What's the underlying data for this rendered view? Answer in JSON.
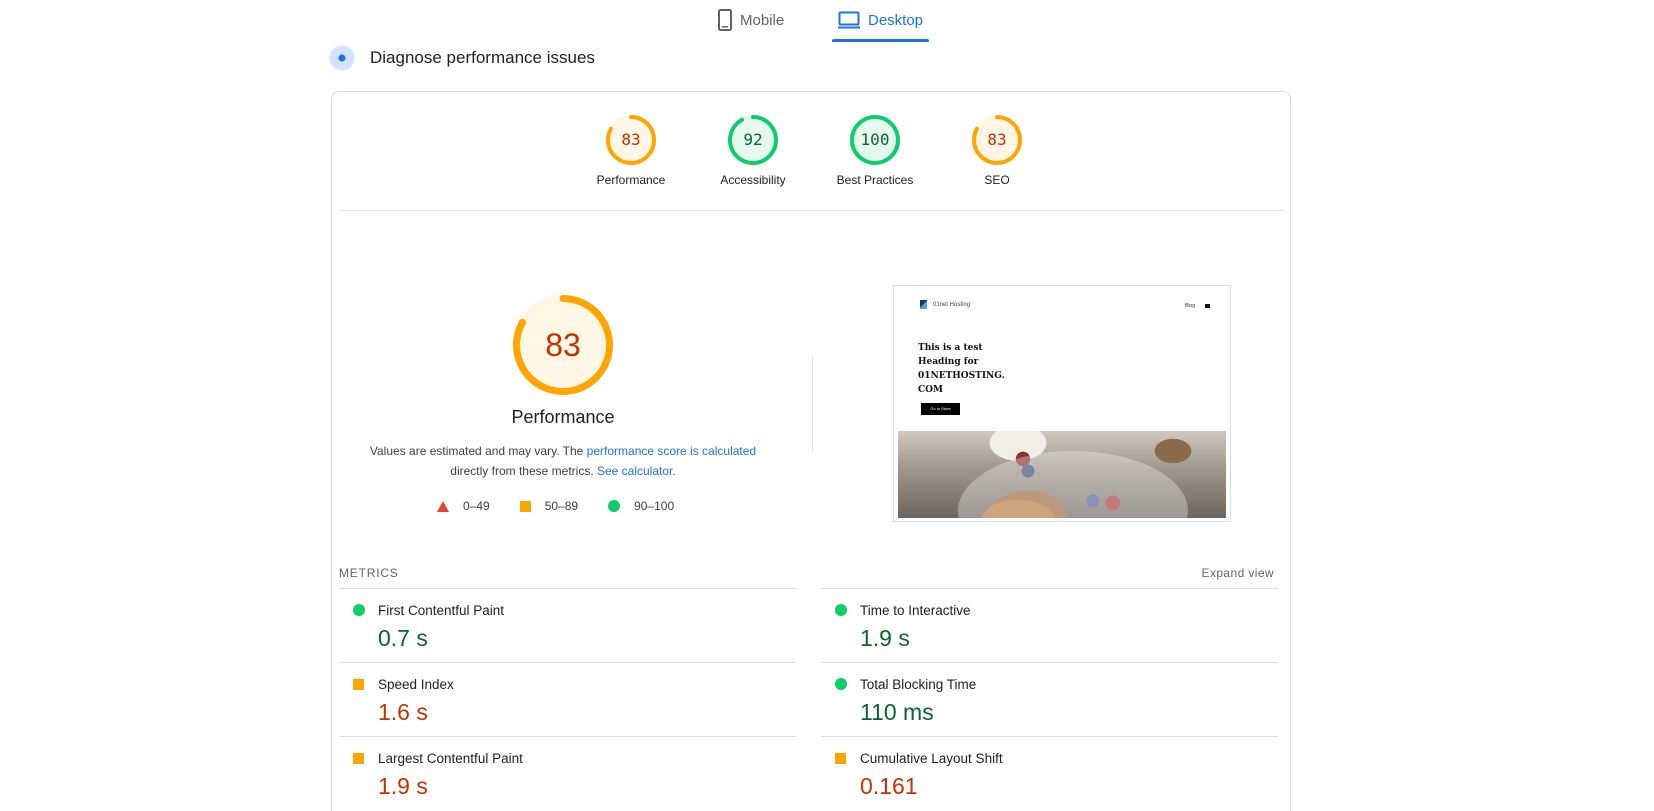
{
  "tabs": [
    {
      "label": "Mobile",
      "icon": "phone-icon",
      "active": false
    },
    {
      "label": "Desktop",
      "icon": "monitor-icon",
      "active": true
    }
  ],
  "diagnose": {
    "title": "Diagnose performance issues",
    "icon": "diagnose-icon"
  },
  "gauges": [
    {
      "score": "83",
      "label": "Performance",
      "value": 0.83,
      "status": "average"
    },
    {
      "score": "92",
      "label": "Accessibility",
      "value": 0.92,
      "status": "pass"
    },
    {
      "score": "100",
      "label": "Best Practices",
      "value": 1.0,
      "status": "pass"
    },
    {
      "score": "83",
      "label": "SEO",
      "value": 0.83,
      "status": "average"
    }
  ],
  "performance": {
    "score": "83",
    "value": 0.83,
    "title": "Performance",
    "note_prefix": "Values are estimated and may vary. The ",
    "note_link": "performance score is calculated",
    "note_middle": "directly from these metrics. ",
    "note_link2": "See calculator",
    "note_suffix": "."
  },
  "legend": [
    {
      "range": "0–49",
      "shape": "triangle",
      "color": "#eb4335"
    },
    {
      "range": "50–89",
      "shape": "square",
      "color": "#ffa400"
    },
    {
      "range": "90–100",
      "shape": "circle",
      "color": "#0cce6b"
    }
  ],
  "preview": {
    "brand": "01net Hosting",
    "nav_item": "Blog",
    "heading": "This is a  test\nHeading for\n01NETHOSTING.\nCOM",
    "button": "Go to Store"
  },
  "metrics": {
    "header": "METRICS",
    "expand": "Expand view",
    "left": [
      {
        "name": "First Contentful Paint",
        "value": "0.7 s",
        "status": "pass"
      },
      {
        "name": "Speed Index",
        "value": "1.6 s",
        "status": "average"
      },
      {
        "name": "Largest Contentful Paint",
        "value": "1.9 s",
        "status": "average"
      }
    ],
    "right": [
      {
        "name": "Time to Interactive",
        "value": "1.9 s",
        "status": "pass"
      },
      {
        "name": "Total Blocking Time",
        "value": "110 ms",
        "status": "pass"
      },
      {
        "name": "Cumulative Layout Shift",
        "value": "0.161",
        "status": "average"
      }
    ]
  },
  "colors": {
    "accent": "#1a73e8",
    "pass_ring": "#0cce6b",
    "pass_fill": "#e6f9ef",
    "pass_text": "#0d652d",
    "avg_ring": "#ffa400",
    "avg_fill": "#fff6e5",
    "avg_text": "#c33300"
  }
}
